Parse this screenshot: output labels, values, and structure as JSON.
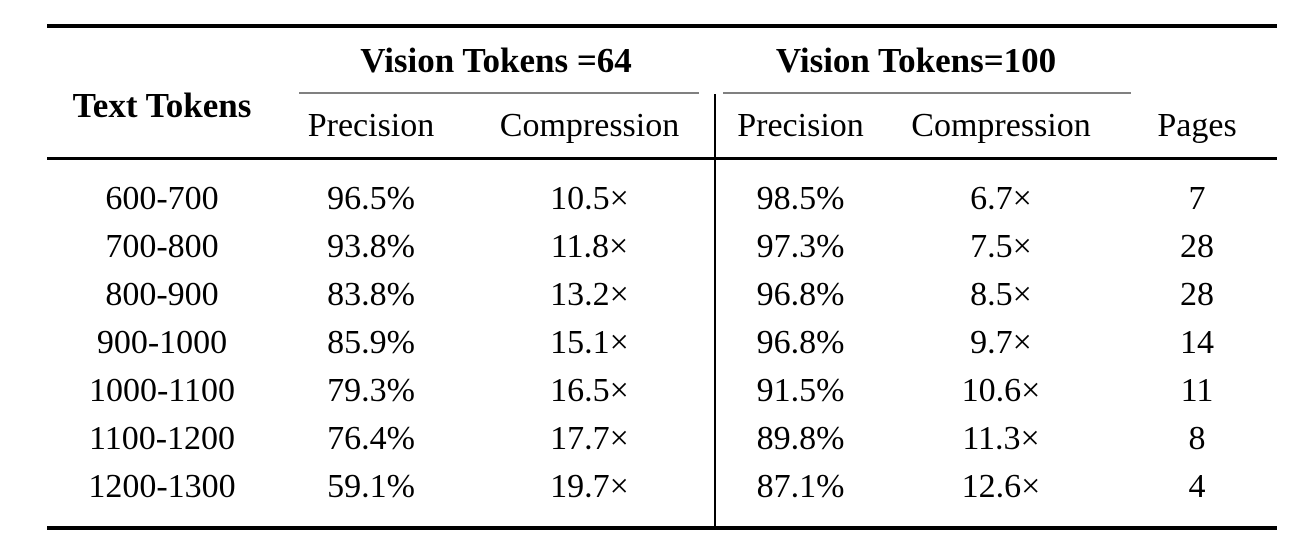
{
  "table": {
    "corner_header": "Text Tokens",
    "groups": [
      {
        "label": "Vision Tokens =64",
        "subcolumns": [
          "Precision",
          "Compression"
        ]
      },
      {
        "label": "Vision Tokens=100",
        "subcolumns": [
          "Precision",
          "Compression"
        ]
      }
    ],
    "pages_header": "Pages",
    "rows": [
      [
        "600-700",
        "96.5%",
        "10.5×",
        "98.5%",
        "6.7×",
        "7"
      ],
      [
        "700-800",
        "93.8%",
        "11.8×",
        "97.3%",
        "7.5×",
        "28"
      ],
      [
        "800-900",
        "83.8%",
        "13.2×",
        "96.8%",
        "8.5×",
        "28"
      ],
      [
        "900-1000",
        "85.9%",
        "15.1×",
        "96.8%",
        "9.7×",
        "14"
      ],
      [
        "1000-1100",
        "79.3%",
        "16.5×",
        "91.5%",
        "10.6×",
        "11"
      ],
      [
        "1100-1200",
        "76.4%",
        "17.7×",
        "89.8%",
        "11.3×",
        "8"
      ],
      [
        "1200-1300",
        "59.1%",
        "19.7×",
        "87.1%",
        "12.6×",
        "4"
      ]
    ]
  },
  "colors": {
    "background": "#ffffff",
    "text": "#000000",
    "heavy_rule": "#000000",
    "cmidrule": "#808080"
  }
}
